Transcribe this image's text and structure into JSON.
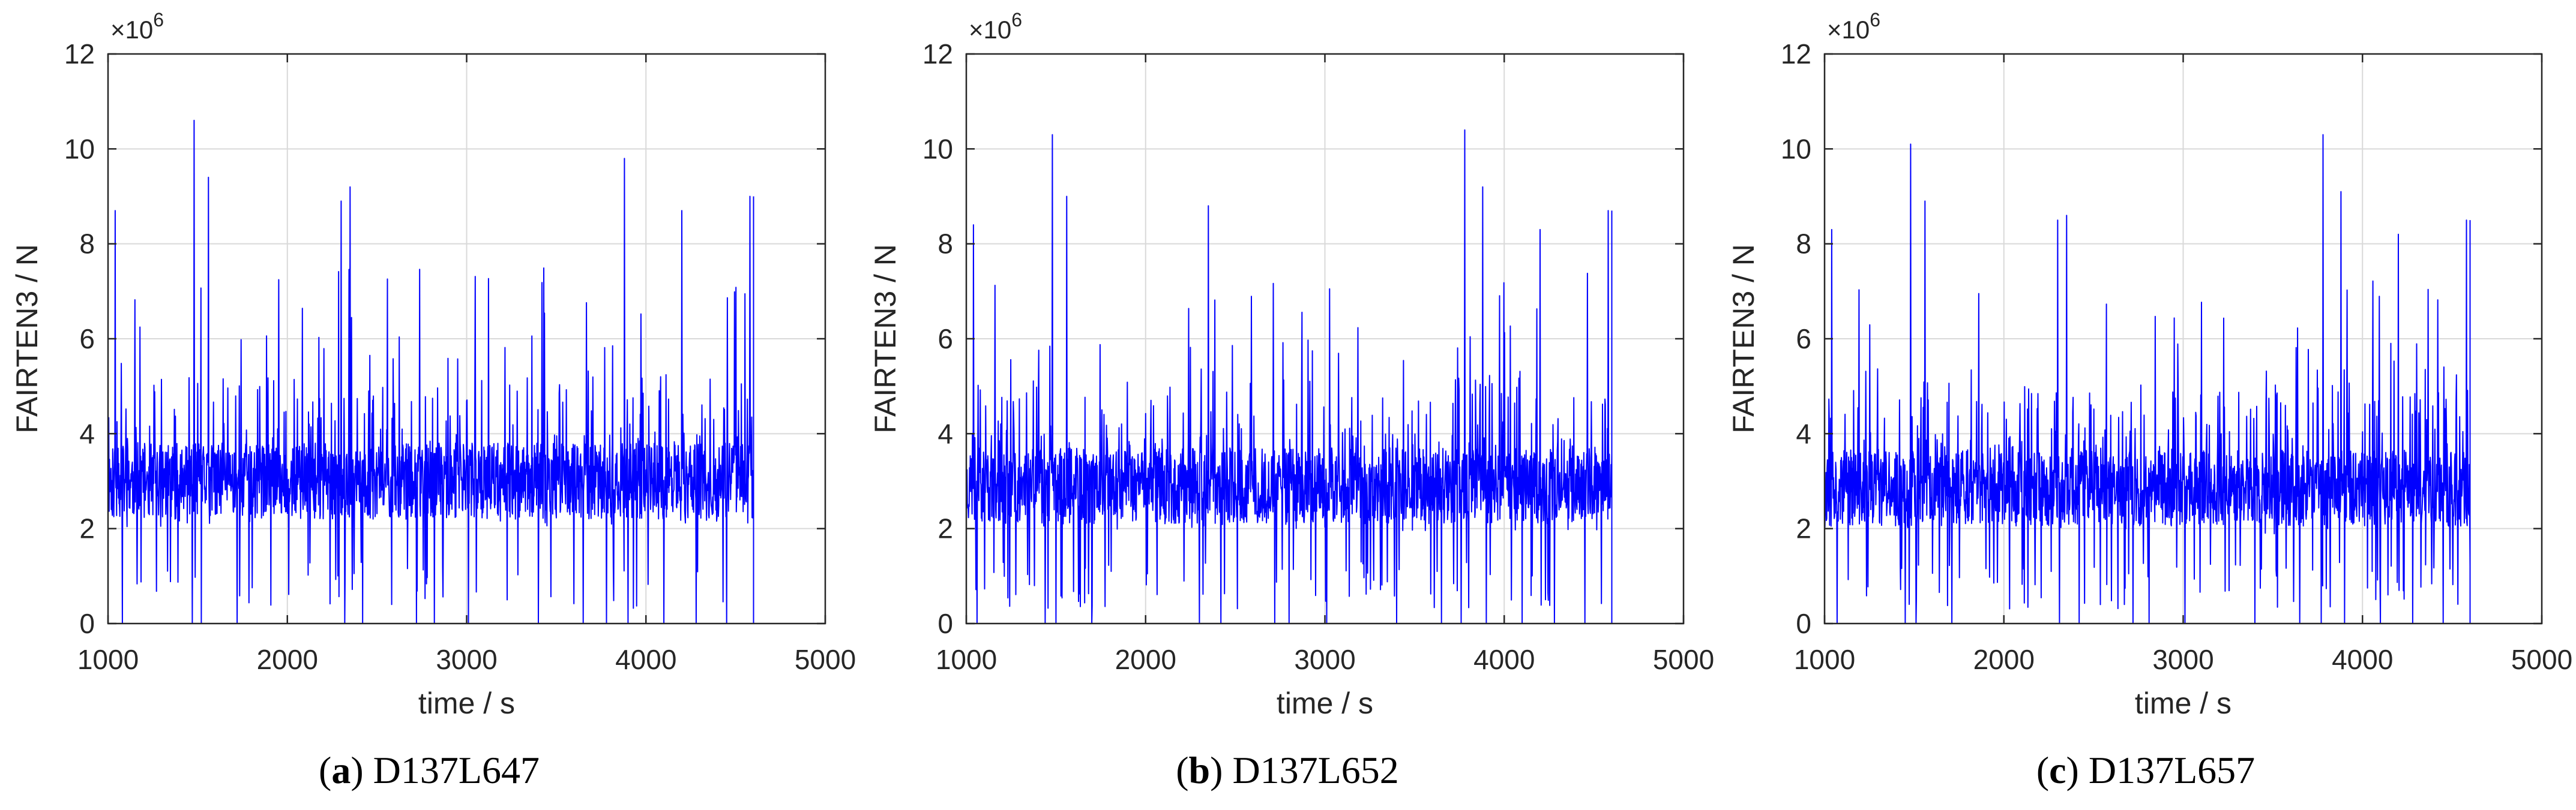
{
  "chart_data": [
    {
      "type": "line",
      "caption_letter": "a",
      "caption_text": "D137L647",
      "xlabel": "time / s",
      "ylabel": "FAIRTEN3 / N",
      "y_multiplier": "×10",
      "y_multiplier_exp": "6",
      "xlim": [
        1000,
        5000
      ],
      "ylim": [
        0,
        12
      ],
      "xticks": [
        "1000",
        "2000",
        "3000",
        "4000",
        "5000"
      ],
      "yticks": [
        "0",
        "2",
        "4",
        "6",
        "8",
        "10",
        "12"
      ],
      "grid": true,
      "color": "#0000ff",
      "x_range": [
        1000,
        4600
      ],
      "baseline": 3.0,
      "seed": 11,
      "peaks": [
        [
          1040,
          8.7
        ],
        [
          1480,
          10.6
        ],
        [
          1560,
          9.4
        ],
        [
          2350,
          9.2
        ],
        [
          2300,
          8.9
        ],
        [
          3780,
          10.7
        ],
        [
          3880,
          9.8
        ],
        [
          4200,
          8.7
        ],
        [
          4280,
          8.7
        ],
        [
          4580,
          9.0
        ]
      ],
      "zero_dips": [
        1080,
        1470,
        1520,
        1720,
        2320,
        2420,
        2720,
        2820,
        3010,
        3400,
        3650,
        3780,
        3900,
        4100,
        4280,
        4450
      ]
    },
    {
      "type": "line",
      "caption_letter": "b",
      "caption_text": "D137L652",
      "xlabel": "time / s",
      "ylabel": "FAIRTEN3 / N",
      "y_multiplier": "×10",
      "y_multiplier_exp": "6",
      "xlim": [
        1000,
        5000
      ],
      "ylim": [
        0,
        12
      ],
      "xticks": [
        "1000",
        "2000",
        "3000",
        "4000",
        "5000"
      ],
      "yticks": [
        "0",
        "2",
        "4",
        "6",
        "8",
        "10",
        "12"
      ],
      "grid": true,
      "color": "#0000ff",
      "x_range": [
        1000,
        4600
      ],
      "baseline": 2.9,
      "seed": 23,
      "peaks": [
        [
          1040,
          8.4
        ],
        [
          1480,
          10.3
        ],
        [
          1560,
          9.0
        ],
        [
          2350,
          8.8
        ],
        [
          2300,
          8.6
        ],
        [
          3780,
          10.4
        ],
        [
          3880,
          9.2
        ],
        [
          4200,
          8.3
        ],
        [
          4280,
          8.3
        ],
        [
          4580,
          8.7
        ]
      ],
      "zero_dips": [
        1060,
        1440,
        1500,
        1700,
        2300,
        2420,
        2720,
        2800,
        3010,
        3400,
        3650,
        3760,
        3900,
        4100,
        4280,
        4450
      ]
    },
    {
      "type": "line",
      "caption_letter": "c",
      "caption_text": "D137L657",
      "xlabel": "time / s",
      "ylabel": "FAIRTEN3 / N",
      "y_multiplier": "×10",
      "y_multiplier_exp": "6",
      "xlim": [
        1000,
        5000
      ],
      "ylim": [
        0,
        12
      ],
      "xticks": [
        "1000",
        "2000",
        "3000",
        "4000",
        "5000"
      ],
      "yticks": [
        "0",
        "2",
        "4",
        "6",
        "8",
        "10",
        "12"
      ],
      "grid": true,
      "color": "#0000ff",
      "x_range": [
        1000,
        4600
      ],
      "baseline": 2.85,
      "seed": 37,
      "peaks": [
        [
          1040,
          8.3
        ],
        [
          1480,
          10.1
        ],
        [
          1560,
          8.9
        ],
        [
          2350,
          8.6
        ],
        [
          2300,
          8.5
        ],
        [
          3780,
          10.3
        ],
        [
          3880,
          9.1
        ],
        [
          4200,
          8.2
        ],
        [
          4280,
          8.2
        ],
        [
          4580,
          8.5
        ]
      ],
      "zero_dips": [
        1070,
        1450,
        1510,
        1710,
        2310,
        2420,
        2720,
        2810,
        3010,
        3400,
        3650,
        3770,
        3900,
        4100,
        4280,
        4450
      ]
    }
  ]
}
